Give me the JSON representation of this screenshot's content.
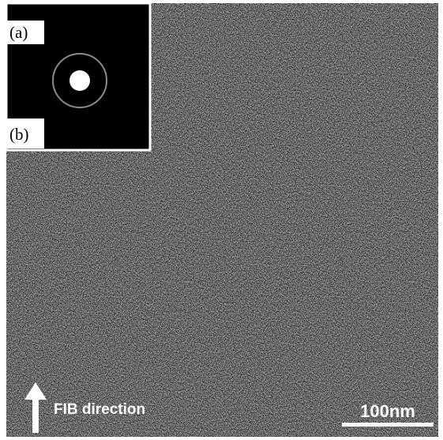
{
  "panel_a_label": "(a)",
  "panel_b_label": "(b)",
  "annotation": "FIB direction",
  "scale_bar": "100nm"
}
